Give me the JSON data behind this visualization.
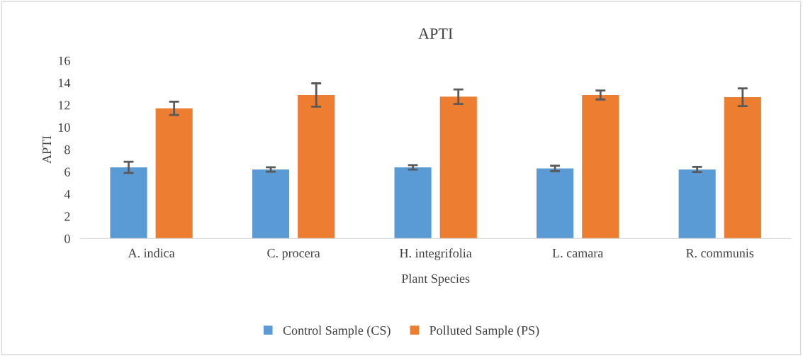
{
  "chart_data": {
    "type": "bar",
    "title": "APTI",
    "xlabel": "Plant Species",
    "ylabel": "APTI",
    "categories": [
      "A. indica",
      "C. procera",
      "H. integrifolia",
      "L. camara",
      "R. communis"
    ],
    "series": [
      {
        "name": "Control Sample (CS)",
        "color": "#5b9bd5",
        "values": [
          6.4,
          6.2,
          6.4,
          6.3,
          6.2
        ],
        "errors": [
          0.5,
          0.2,
          0.2,
          0.25,
          0.23
        ]
      },
      {
        "name": "Polluted Sample (PS)",
        "color": "#ed7d31",
        "values": [
          11.7,
          12.9,
          12.75,
          12.9,
          12.7
        ],
        "errors": [
          0.6,
          1.05,
          0.65,
          0.4,
          0.8
        ]
      }
    ],
    "ylim": [
      0,
      16
    ],
    "yticks": [
      0,
      2,
      4,
      6,
      8,
      10,
      12,
      14,
      16
    ],
    "grid": false,
    "legend": "bottom"
  }
}
